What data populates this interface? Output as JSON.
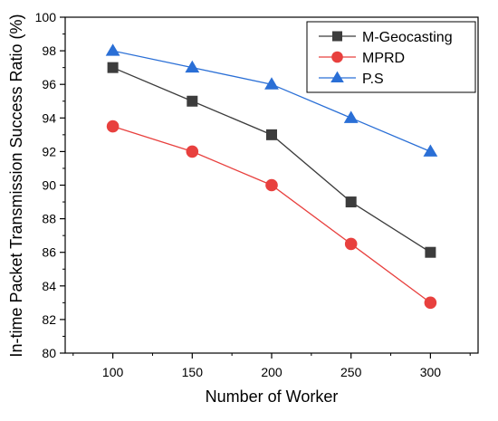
{
  "chart_data": {
    "type": "line",
    "title": "",
    "xlabel": "Number of Worker",
    "ylabel": "In-time Packet Transmission Success Ratio (%)",
    "x": [
      100,
      150,
      200,
      250,
      300
    ],
    "xlim": [
      70,
      330
    ],
    "ylim": [
      80,
      100
    ],
    "xticks": [
      100,
      150,
      200,
      250,
      300
    ],
    "yticks": [
      80,
      82,
      84,
      86,
      88,
      90,
      92,
      94,
      96,
      98,
      100
    ],
    "grid": false,
    "legend_position": "top-right",
    "series": [
      {
        "name": "M-Geocasting",
        "values": [
          97,
          95,
          93,
          89,
          86
        ],
        "color": "#3c3c3c",
        "marker": "square"
      },
      {
        "name": "MPRD",
        "values": [
          93.5,
          92,
          90,
          86.5,
          83
        ],
        "color": "#e8403e",
        "marker": "circle"
      },
      {
        "name": "P.S",
        "values": [
          98,
          97,
          96,
          94,
          92
        ],
        "color": "#2a6fd6",
        "marker": "triangle"
      }
    ]
  }
}
